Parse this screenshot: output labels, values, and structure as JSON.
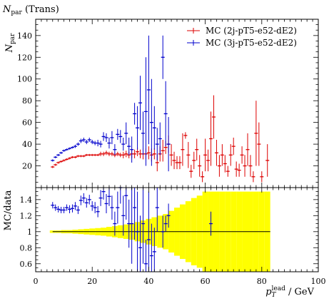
{
  "chart_data": {
    "type": "scatter",
    "title": "N_par (Trans)",
    "title_main": "N",
    "title_sub": "par",
    "title_rest": " (Trans)",
    "ylabel_main": "N",
    "ylabel_sub": "par",
    "ratio_ylabel": "MC/data",
    "xlabel_main": "p",
    "xlabel_sub": "T",
    "xlabel_sup": "lead",
    "xlabel_unit": " / GeV",
    "xlim": [
      0,
      100
    ],
    "ylim": [
      0,
      155
    ],
    "ratio_ylim": [
      0.5,
      1.55
    ],
    "xticks": [
      "0",
      "20",
      "40",
      "60",
      "80",
      "100"
    ],
    "yticks": [
      "20",
      "40",
      "60",
      "80",
      "100",
      "120",
      "140"
    ],
    "ratio_yticks": [
      "0.6",
      "0.8",
      "1",
      "1.2",
      "1.4"
    ],
    "legend_position": "top-right",
    "colors": {
      "red": "#dd0000",
      "blue": "#0000cc",
      "yellow": "#ffff00",
      "gray": "#aaaaaa"
    },
    "series": [
      {
        "name": "MC (2j-pT5-e52-dE2)",
        "color": "#dd0000",
        "points": [
          [
            6,
            19,
            1
          ],
          [
            7,
            21,
            1
          ],
          [
            8,
            23,
            1
          ],
          [
            9,
            24,
            1
          ],
          [
            10,
            25,
            1
          ],
          [
            11,
            26,
            1
          ],
          [
            12,
            27,
            1
          ],
          [
            13,
            28,
            1
          ],
          [
            14,
            28,
            1
          ],
          [
            15,
            29,
            1
          ],
          [
            16,
            29,
            1
          ],
          [
            17,
            29,
            1
          ],
          [
            18,
            30,
            1
          ],
          [
            19,
            30,
            1
          ],
          [
            20,
            30,
            1
          ],
          [
            21,
            30,
            1
          ],
          [
            22,
            30,
            1
          ],
          [
            23,
            31,
            2
          ],
          [
            24,
            31,
            2
          ],
          [
            25,
            32,
            2
          ],
          [
            26,
            31,
            2
          ],
          [
            27,
            31,
            2
          ],
          [
            28,
            30,
            2
          ],
          [
            29,
            31,
            2
          ],
          [
            30,
            30,
            2
          ],
          [
            31,
            30,
            3
          ],
          [
            32,
            31,
            3
          ],
          [
            33,
            30,
            3
          ],
          [
            34,
            31,
            4
          ],
          [
            35,
            31,
            4
          ],
          [
            36,
            33,
            4
          ],
          [
            37,
            31,
            4
          ],
          [
            38,
            31,
            5
          ],
          [
            39,
            31,
            5
          ],
          [
            40,
            32,
            6
          ],
          [
            41,
            30,
            6
          ],
          [
            42,
            31,
            5
          ],
          [
            43,
            23,
            8
          ],
          [
            44,
            31,
            7
          ],
          [
            45,
            34,
            10
          ],
          [
            46,
            37,
            6
          ],
          [
            47,
            40,
            8
          ],
          [
            48,
            30,
            10
          ],
          [
            49,
            25,
            8
          ],
          [
            50,
            23,
            6
          ],
          [
            51,
            23,
            6
          ],
          [
            52,
            35,
            15
          ],
          [
            53,
            48,
            3
          ],
          [
            54,
            30,
            12
          ],
          [
            55,
            15,
            6
          ],
          [
            56,
            25,
            8
          ],
          [
            57,
            35,
            10
          ],
          [
            58,
            20,
            10
          ],
          [
            59,
            10,
            5
          ],
          [
            60,
            30,
            15
          ],
          [
            61,
            25,
            10
          ],
          [
            62,
            45,
            25
          ],
          [
            63,
            65,
            20
          ],
          [
            64,
            32,
            12
          ],
          [
            65,
            20,
            10
          ],
          [
            66,
            30,
            10
          ],
          [
            67,
            22,
            8
          ],
          [
            68,
            15,
            5
          ],
          [
            69,
            30,
            10
          ],
          [
            70,
            38,
            8
          ],
          [
            71,
            17,
            7
          ],
          [
            72,
            16,
            6
          ],
          [
            73,
            30,
            8
          ],
          [
            74,
            20,
            10
          ],
          [
            75,
            35,
            15
          ],
          [
            76,
            20,
            10
          ],
          [
            77,
            10,
            5
          ],
          [
            78,
            50,
            30
          ],
          [
            79,
            40,
            20
          ],
          [
            80,
            10,
            5
          ],
          [
            82,
            25,
            15
          ]
        ]
      },
      {
        "name": "MC (3j-pT5-e52-dE2)",
        "color": "#0000cc",
        "points": [
          [
            6,
            25,
            1
          ],
          [
            7,
            28,
            1
          ],
          [
            8,
            30,
            1
          ],
          [
            9,
            32,
            1
          ],
          [
            10,
            34,
            1
          ],
          [
            11,
            35,
            1
          ],
          [
            12,
            36,
            1
          ],
          [
            13,
            37,
            1
          ],
          [
            14,
            38,
            1.5
          ],
          [
            15,
            40,
            1.5
          ],
          [
            16,
            43,
            2
          ],
          [
            17,
            44,
            2
          ],
          [
            18,
            42,
            2
          ],
          [
            19,
            44,
            2
          ],
          [
            20,
            42,
            2
          ],
          [
            21,
            41,
            2
          ],
          [
            22,
            41,
            3
          ],
          [
            23,
            40,
            3
          ],
          [
            24,
            47,
            4
          ],
          [
            25,
            46,
            4
          ],
          [
            26,
            41,
            5
          ],
          [
            27,
            46,
            6
          ],
          [
            28,
            35,
            5
          ],
          [
            29,
            49,
            5
          ],
          [
            30,
            47,
            6
          ],
          [
            31,
            40,
            6
          ],
          [
            32,
            50,
            10
          ],
          [
            33,
            38,
            8
          ],
          [
            34,
            35,
            12
          ],
          [
            35,
            68,
            10
          ],
          [
            36,
            55,
            20
          ],
          [
            37,
            78,
            25
          ],
          [
            38,
            50,
            20
          ],
          [
            39,
            70,
            50
          ],
          [
            40,
            90,
            50
          ],
          [
            41,
            60,
            40
          ],
          [
            42,
            55,
            20
          ],
          [
            43,
            40,
            15
          ],
          [
            44,
            45,
            15
          ],
          [
            45,
            120,
            20
          ],
          [
            46,
            68,
            30
          ],
          [
            47,
            40,
            25
          ]
        ]
      }
    ],
    "ratio_band": [
      [
        6,
        0.015
      ],
      [
        8,
        0.015
      ],
      [
        10,
        0.02
      ],
      [
        12,
        0.02
      ],
      [
        14,
        0.025
      ],
      [
        16,
        0.03
      ],
      [
        18,
        0.035
      ],
      [
        20,
        0.04
      ],
      [
        22,
        0.045
      ],
      [
        24,
        0.05
      ],
      [
        26,
        0.06
      ],
      [
        28,
        0.07
      ],
      [
        30,
        0.08
      ],
      [
        32,
        0.09
      ],
      [
        34,
        0.1
      ],
      [
        36,
        0.12
      ],
      [
        38,
        0.14
      ],
      [
        40,
        0.16
      ],
      [
        42,
        0.18
      ],
      [
        44,
        0.2
      ],
      [
        46,
        0.22
      ],
      [
        48,
        0.26
      ],
      [
        50,
        0.3
      ],
      [
        52,
        0.34
      ],
      [
        54,
        0.38
      ],
      [
        56,
        0.42
      ],
      [
        58,
        0.45
      ],
      [
        60,
        0.5
      ],
      [
        62,
        0.5
      ],
      [
        64,
        0.5
      ],
      [
        66,
        0.5
      ],
      [
        68,
        0.5
      ],
      [
        70,
        0.5
      ],
      [
        72,
        0.5
      ],
      [
        74,
        0.5
      ],
      [
        76,
        0.5
      ],
      [
        78,
        0.5
      ],
      [
        80,
        0.5
      ],
      [
        82,
        0.5
      ]
    ],
    "ratio_points": [
      [
        6,
        1.33,
        0.04
      ],
      [
        7,
        1.3,
        0.04
      ],
      [
        8,
        1.28,
        0.04
      ],
      [
        9,
        1.27,
        0.04
      ],
      [
        10,
        1.27,
        0.04
      ],
      [
        11,
        1.3,
        0.04
      ],
      [
        12,
        1.28,
        0.05
      ],
      [
        13,
        1.29,
        0.05
      ],
      [
        14,
        1.32,
        0.05
      ],
      [
        15,
        1.27,
        0.05
      ],
      [
        16,
        1.39,
        0.06
      ],
      [
        17,
        1.42,
        0.06
      ],
      [
        18,
        1.36,
        0.06
      ],
      [
        19,
        1.4,
        0.06
      ],
      [
        20,
        1.32,
        0.06
      ],
      [
        21,
        1.3,
        0.07
      ],
      [
        22,
        1.25,
        0.07
      ],
      [
        23,
        1.42,
        0.1
      ],
      [
        24,
        1.5,
        0.1
      ],
      [
        25,
        1.35,
        0.12
      ],
      [
        26,
        1.44,
        0.12
      ],
      [
        27,
        1.3,
        0.15
      ],
      [
        28,
        1.1,
        0.15
      ],
      [
        29,
        1.3,
        0.2
      ],
      [
        30,
        1.55,
        0.2
      ],
      [
        31,
        1.2,
        0.25
      ],
      [
        32,
        1.45,
        0.3
      ],
      [
        33,
        1.1,
        0.3
      ],
      [
        34,
        1.1,
        0.5
      ],
      [
        35,
        1.3,
        0.4
      ],
      [
        36,
        1.0,
        0.5
      ],
      [
        37,
        0.8,
        0.4
      ],
      [
        38,
        1.1,
        0.5
      ],
      [
        39,
        0.6,
        0.3
      ],
      [
        40,
        0.9,
        0.6
      ],
      [
        41,
        0.7,
        0.4
      ],
      [
        42,
        0.75,
        0.3
      ],
      [
        43,
        1.3,
        0.3
      ],
      [
        45,
        1.0,
        0.2
      ],
      [
        46,
        1.1,
        0.1
      ],
      [
        47,
        1.2,
        0.15
      ],
      [
        62,
        1.1,
        0.15
      ]
    ]
  }
}
